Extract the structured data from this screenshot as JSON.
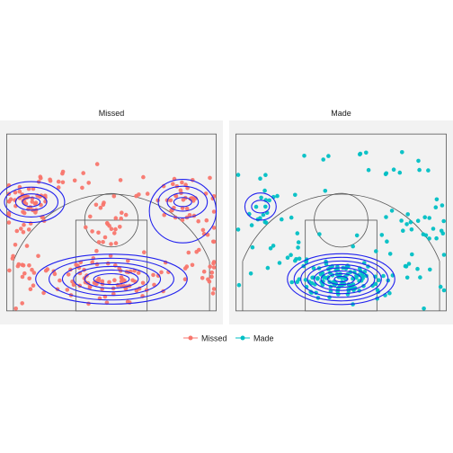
{
  "chart_data": {
    "type": "scatter",
    "title": "",
    "xlabel": "",
    "ylabel": "",
    "xlim": [
      -25,
      25
    ],
    "ylim": [
      -5,
      40
    ],
    "grid": false,
    "legend": {
      "position": "bottom",
      "entries": [
        "Missed",
        "Made"
      ]
    },
    "colors": {
      "Missed": "#f8766d",
      "Made": "#00bfc4",
      "contour": "#2222ee",
      "court": "#555555",
      "panel": "#f2f2f2",
      "strip": "#d9d9d9"
    },
    "facets": [
      {
        "label": "Missed",
        "series": "Missed",
        "clusters": [
          {
            "cx": -18,
            "cy": 22,
            "sx": 2.5,
            "sy": 2.5,
            "n": 45
          },
          {
            "cx": -20,
            "cy": 10,
            "sx": 2.5,
            "sy": 7,
            "n": 30
          },
          {
            "cx": 0,
            "cy": 5,
            "sx": 7,
            "sy": 2.5,
            "n": 85
          },
          {
            "cx": 0,
            "cy": 18,
            "sx": 2.8,
            "sy": 3,
            "n": 25
          },
          {
            "cx": 16,
            "cy": 22,
            "sx": 4,
            "sy": 3,
            "n": 40
          },
          {
            "cx": 21,
            "cy": 8,
            "sx": 2.5,
            "sy": 5,
            "n": 25
          },
          {
            "cx": -5,
            "cy": 27,
            "sx": 7,
            "sy": 2.5,
            "n": 18
          }
        ],
        "contours": [
          {
            "cx": 0,
            "cy": 5,
            "rx": [
              4,
              6,
              8.5,
              11,
              14,
              17
            ],
            "ry": [
              1.2,
              2,
              2.8,
              3.6,
              4.6,
              5.5
            ]
          },
          {
            "cx": -18,
            "cy": 22,
            "rx": [
              2,
              3.5,
              6,
              7.5
            ],
            "ry": [
              1,
              1.8,
              3.3,
              4.5
            ]
          },
          {
            "cx": 16,
            "cy": 22,
            "rx": [
              2,
              3.5,
              5.5
            ],
            "ry": [
              1,
              2,
              3.5
            ]
          },
          {
            "cx": 16,
            "cy": 20,
            "rx": [
              7.5
            ],
            "ry": [
              7
            ]
          }
        ]
      },
      {
        "label": "Made",
        "series": "Made",
        "clusters": [
          {
            "cx": 0,
            "cy": 5,
            "sx": 5,
            "sy": 2,
            "n": 110
          },
          {
            "cx": -17,
            "cy": 21,
            "sx": 3,
            "sy": 3,
            "n": 18
          },
          {
            "cx": 10,
            "cy": 12,
            "sx": 7,
            "sy": 7,
            "n": 35
          },
          {
            "cx": -10,
            "cy": 14,
            "sx": 6,
            "sy": 6,
            "n": 22
          },
          {
            "cx": 5,
            "cy": 30,
            "sx": 7,
            "sy": 2.5,
            "n": 12
          },
          {
            "cx": 20,
            "cy": 20,
            "sx": 3,
            "sy": 5,
            "n": 14
          }
        ],
        "contours": [
          {
            "cx": 0,
            "cy": 5,
            "rx": [
              1.5,
              3,
              4.5,
              6,
              7.5,
              9,
              10.5,
              12
            ],
            "ry": [
              0.6,
              1.2,
              1.8,
              2.5,
              3.2,
              4,
              4.8,
              5.6
            ]
          },
          {
            "cx": -18,
            "cy": 21,
            "rx": [
              2,
              3.5
            ],
            "ry": [
              1.4,
              3
            ]
          }
        ]
      }
    ]
  }
}
